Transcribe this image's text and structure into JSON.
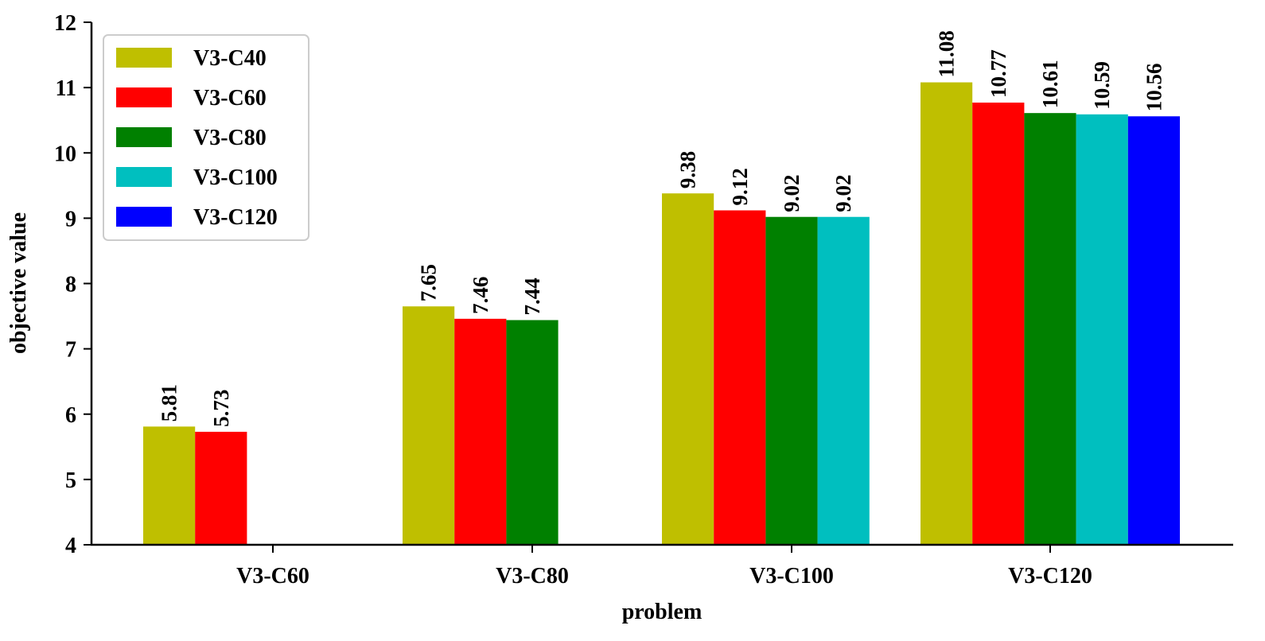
{
  "chart_data": {
    "type": "bar",
    "title": "",
    "xlabel": "problem",
    "ylabel": "objective value",
    "ylim": [
      4,
      12
    ],
    "yticks": [
      4,
      5,
      6,
      7,
      8,
      9,
      10,
      11,
      12
    ],
    "categories": [
      "V3-C60",
      "V3-C80",
      "V3-C100",
      "V3-C120"
    ],
    "series": [
      {
        "name": "V3-C40",
        "color": "#bfbf00",
        "values": [
          5.81,
          7.65,
          9.38,
          11.08
        ]
      },
      {
        "name": "V3-C60",
        "color": "#ff0000",
        "values": [
          5.73,
          7.46,
          9.12,
          10.77
        ]
      },
      {
        "name": "V3-C80",
        "color": "#008000",
        "values": [
          null,
          7.44,
          9.02,
          10.61
        ]
      },
      {
        "name": "V3-C100",
        "color": "#00bfbf",
        "values": [
          null,
          null,
          9.02,
          10.59
        ]
      },
      {
        "name": "V3-C120",
        "color": "#0000ff",
        "values": [
          null,
          null,
          null,
          10.56
        ]
      }
    ],
    "legend_position": "top-left",
    "grid": false
  }
}
